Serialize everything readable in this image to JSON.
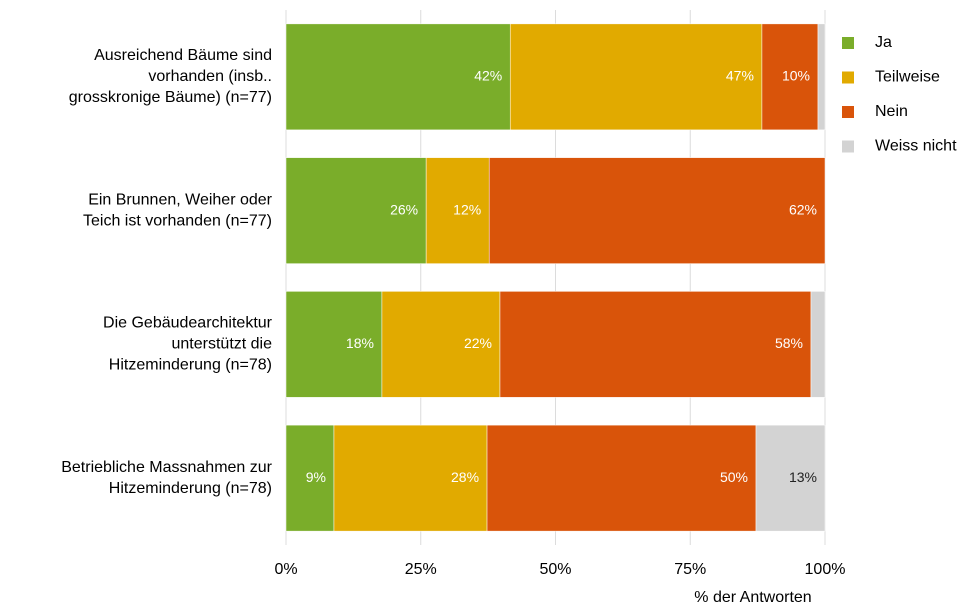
{
  "chart_data": {
    "type": "stacked_barh",
    "categories": [
      [
        "Ausreichend Bäume sind",
        "vorhanden (insb..",
        "grosskronige Bäume) (n=77)"
      ],
      [
        "Ein Brunnen, Weiher oder",
        "Teich ist vorhanden (n=77)"
      ],
      [
        "Die Gebäudearchitektur",
        "unterstützt die",
        "Hitzeminderung (n=78)"
      ],
      [
        "Betriebliche Massnahmen zur",
        "Hitzeminderung  (n=78)"
      ]
    ],
    "series": [
      {
        "name": "Ja",
        "color": "#7aad2a",
        "values": [
          41.6,
          26.0,
          17.8,
          8.9
        ],
        "value_labels": [
          "42%",
          "26%",
          "18%",
          "9%"
        ]
      },
      {
        "name": "Teilweise",
        "color": "#e1aa00",
        "values": [
          46.7,
          11.7,
          21.9,
          28.4
        ],
        "value_labels": [
          "47%",
          "12%",
          "22%",
          "28%"
        ]
      },
      {
        "name": "Nein",
        "color": "#d9540a",
        "values": [
          10.4,
          62.3,
          57.7,
          49.9
        ],
        "value_labels": [
          "10%",
          "62%",
          "58%",
          "50%"
        ]
      },
      {
        "name": "Weiss nicht",
        "color": "#d3d3d3",
        "values": [
          1.3,
          0,
          2.6,
          12.8
        ],
        "value_labels": [
          null,
          null,
          null,
          "13%"
        ]
      }
    ],
    "xlim": [
      0,
      100
    ],
    "xticks": [
      {
        "value": 0,
        "label": "0%"
      },
      {
        "value": 25,
        "label": "25%"
      },
      {
        "value": 50,
        "label": "50%"
      },
      {
        "value": 75,
        "label": "75%"
      },
      {
        "value": 100,
        "label": "100%"
      }
    ],
    "xlabel": "% der Antworten",
    "grid": true,
    "legend": "right"
  }
}
